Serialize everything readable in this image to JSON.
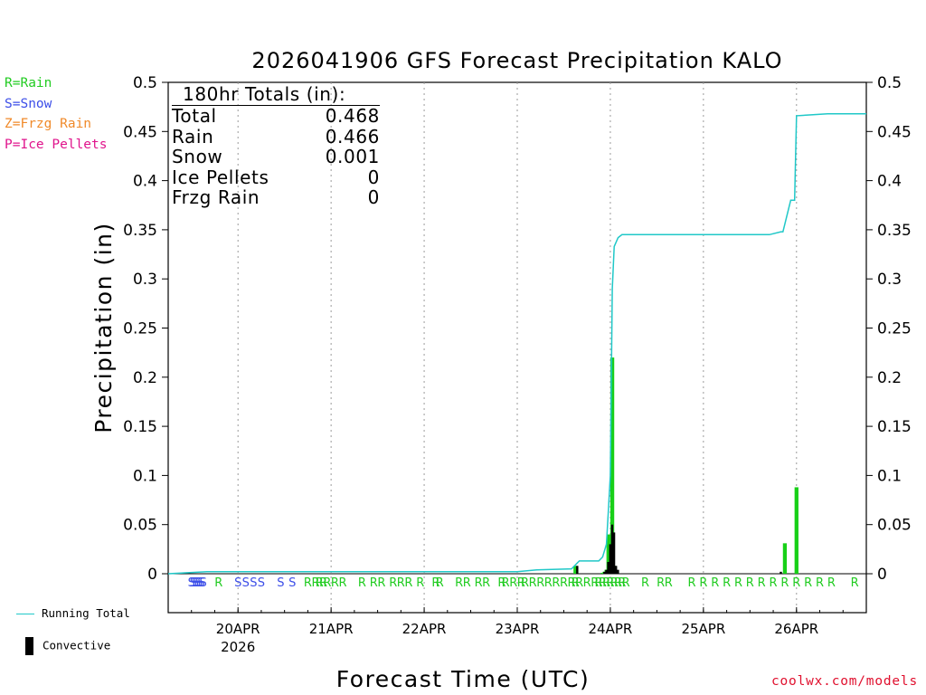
{
  "legend": {
    "types": [
      {
        "key": "rain",
        "label": "R=Rain",
        "color": "#22cc22"
      },
      {
        "key": "snow",
        "label": "S=Snow",
        "color": "#3c4ee8"
      },
      {
        "key": "frzg",
        "label": "Z=Frzg Rain",
        "color": "#f08a2a"
      },
      {
        "key": "ice",
        "label": "P=Ice Pellets",
        "color": "#e0148c"
      }
    ],
    "running_total_label": "Running Total",
    "convective_label": "Convective"
  },
  "totals": {
    "title": "180hr Totals (in):",
    "rows": [
      {
        "label": "Total",
        "value": "0.468"
      },
      {
        "label": "Rain",
        "value": "0.466"
      },
      {
        "label": "Snow",
        "value": "0.001"
      },
      {
        "label": "Ice Pellets",
        "value": "0"
      },
      {
        "label": "Frzg Rain",
        "value": "0"
      }
    ]
  },
  "credit": "coolwx.com/models",
  "colors": {
    "running_total": "#20c8c8",
    "rain_bar": "#18d018",
    "convective": "#000000",
    "grid": "#9a9a9a"
  },
  "chart_data": {
    "type": "bar",
    "title": "2026041906 GFS Forecast Precipitation KALO",
    "xlabel": "Forecast Time (UTC)",
    "ylabel": "Precipitation (in)",
    "x_unit": "forecast hour",
    "xlim": [
      0,
      180
    ],
    "ylim": [
      0,
      0.5
    ],
    "y_ticks": [
      0,
      0.05,
      0.1,
      0.15,
      0.2,
      0.25,
      0.3,
      0.35,
      0.4,
      0.45,
      0.5
    ],
    "y_tick_labels": [
      "0",
      "0.05",
      "0.1",
      "0.15",
      "0.2",
      "0.25",
      "0.3",
      "0.35",
      "0.4",
      "0.45",
      "0.5"
    ],
    "x_ticks": [
      {
        "hour": 18,
        "label": "20APR",
        "sublabel": "2026"
      },
      {
        "hour": 42,
        "label": "21APR"
      },
      {
        "hour": 66,
        "label": "22APR"
      },
      {
        "hour": 90,
        "label": "23APR"
      },
      {
        "hour": 114,
        "label": "24APR"
      },
      {
        "hour": 138,
        "label": "25APR"
      },
      {
        "hour": 162,
        "label": "26APR"
      }
    ],
    "grid": "vertical dotted at day boundaries",
    "series": [
      {
        "name": "Total precipitation per step",
        "x": [
          105,
          112,
          112.5,
          113,
          113.5,
          114,
          114.5,
          115,
          115.5,
          159,
          162
        ],
        "values": [
          0.008,
          0.001,
          0.002,
          0.004,
          0.04,
          0.02,
          0.22,
          0.008,
          0.001,
          0.031,
          0.088
        ]
      },
      {
        "name": "Convective",
        "x": [
          105,
          112,
          112.5,
          113,
          113.5,
          114,
          114.5,
          115,
          115.5,
          157.5
        ],
        "values": [
          0.008,
          0.002,
          0.004,
          0.012,
          0.03,
          0.05,
          0.042,
          0.008,
          0.004,
          0.002
        ]
      },
      {
        "name": "Running Total",
        "x": [
          0,
          10,
          30,
          60,
          90,
          95,
          104,
          106,
          111,
          112,
          113,
          113.5,
          114,
          114.5,
          115,
          116,
          117,
          155,
          158,
          158.5,
          160.5,
          161,
          161.5,
          162,
          170,
          180
        ],
        "values": [
          0,
          0.002,
          0.002,
          0.002,
          0.002,
          0.004,
          0.005,
          0.013,
          0.013,
          0.017,
          0.03,
          0.065,
          0.1,
          0.29,
          0.333,
          0.342,
          0.345,
          0.345,
          0.348,
          0.348,
          0.38,
          0.38,
          0.38,
          0.466,
          0.468,
          0.468
        ]
      }
    ],
    "precip_type_markers": [
      {
        "hour": 6,
        "type": "S"
      },
      {
        "hour": 6.5,
        "type": "S"
      },
      {
        "hour": 7,
        "type": "S"
      },
      {
        "hour": 7.5,
        "type": "S"
      },
      {
        "hour": 8,
        "type": "S"
      },
      {
        "hour": 8.5,
        "type": "S"
      },
      {
        "hour": 9,
        "type": "S"
      },
      {
        "hour": 13,
        "type": "R"
      },
      {
        "hour": 18,
        "type": "S"
      },
      {
        "hour": 20,
        "type": "S"
      },
      {
        "hour": 22,
        "type": "S"
      },
      {
        "hour": 24,
        "type": "S"
      },
      {
        "hour": 29,
        "type": "S"
      },
      {
        "hour": 32,
        "type": "S"
      },
      {
        "hour": 36,
        "type": "R"
      },
      {
        "hour": 38,
        "type": "R"
      },
      {
        "hour": 39,
        "type": "R"
      },
      {
        "hour": 40,
        "type": "R"
      },
      {
        "hour": 41,
        "type": "R"
      },
      {
        "hour": 43,
        "type": "R"
      },
      {
        "hour": 45,
        "type": "R"
      },
      {
        "hour": 50,
        "type": "R"
      },
      {
        "hour": 53,
        "type": "R"
      },
      {
        "hour": 55,
        "type": "R"
      },
      {
        "hour": 58,
        "type": "R"
      },
      {
        "hour": 60,
        "type": "R"
      },
      {
        "hour": 62,
        "type": "R"
      },
      {
        "hour": 65,
        "type": "R"
      },
      {
        "hour": 69,
        "type": "R"
      },
      {
        "hour": 70,
        "type": "R"
      },
      {
        "hour": 75,
        "type": "R"
      },
      {
        "hour": 77,
        "type": "R"
      },
      {
        "hour": 80,
        "type": "R"
      },
      {
        "hour": 82,
        "type": "R"
      },
      {
        "hour": 86,
        "type": "R"
      },
      {
        "hour": 87,
        "type": "R"
      },
      {
        "hour": 89,
        "type": "R"
      },
      {
        "hour": 91,
        "type": "R"
      },
      {
        "hour": 92,
        "type": "R"
      },
      {
        "hour": 94,
        "type": "R"
      },
      {
        "hour": 96,
        "type": "R"
      },
      {
        "hour": 98,
        "type": "R"
      },
      {
        "hour": 100,
        "type": "R"
      },
      {
        "hour": 102,
        "type": "R"
      },
      {
        "hour": 104,
        "type": "R"
      },
      {
        "hour": 105,
        "type": "R"
      },
      {
        "hour": 106,
        "type": "R"
      },
      {
        "hour": 108,
        "type": "R"
      },
      {
        "hour": 110,
        "type": "R"
      },
      {
        "hour": 111,
        "type": "R"
      },
      {
        "hour": 112,
        "type": "R"
      },
      {
        "hour": 113,
        "type": "R"
      },
      {
        "hour": 114,
        "type": "R"
      },
      {
        "hour": 115,
        "type": "R"
      },
      {
        "hour": 116,
        "type": "R"
      },
      {
        "hour": 117,
        "type": "R"
      },
      {
        "hour": 118,
        "type": "R"
      },
      {
        "hour": 123,
        "type": "R"
      },
      {
        "hour": 127,
        "type": "R"
      },
      {
        "hour": 129,
        "type": "R"
      },
      {
        "hour": 135,
        "type": "R"
      },
      {
        "hour": 138,
        "type": "R"
      },
      {
        "hour": 141,
        "type": "R"
      },
      {
        "hour": 144,
        "type": "R"
      },
      {
        "hour": 147,
        "type": "R"
      },
      {
        "hour": 150,
        "type": "R"
      },
      {
        "hour": 153,
        "type": "R"
      },
      {
        "hour": 156,
        "type": "R"
      },
      {
        "hour": 159,
        "type": "R"
      },
      {
        "hour": 162,
        "type": "R"
      },
      {
        "hour": 165,
        "type": "R"
      },
      {
        "hour": 168,
        "type": "R"
      },
      {
        "hour": 171,
        "type": "R"
      },
      {
        "hour": 177,
        "type": "R"
      }
    ]
  }
}
